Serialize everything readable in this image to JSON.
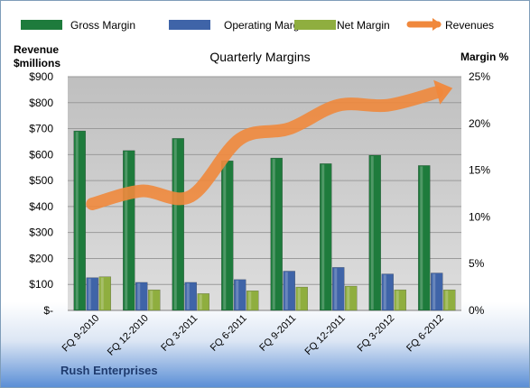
{
  "chart_data": {
    "type": "bar",
    "title": "Quarterly Margins",
    "left_axis_label": [
      "Revenue",
      "$millions"
    ],
    "right_axis_label": "Margin %",
    "footer": "Rush Enterprises",
    "categories": [
      "FQ 9-2010",
      "FQ 12-2010",
      "FQ 3-2011",
      "FQ 6-2011",
      "FQ 9-2011",
      "FQ 12-2011",
      "FQ 3-2012",
      "FQ 6-2012"
    ],
    "left_ticks": [
      "$-",
      "$100",
      "$200",
      "$300",
      "$400",
      "$500",
      "$600",
      "$700",
      "$800",
      "$900"
    ],
    "right_ticks": [
      "0%",
      "5%",
      "10%",
      "15%",
      "20%",
      "25%"
    ],
    "ylim_left": [
      0,
      900
    ],
    "ylim_right": [
      0,
      25
    ],
    "grid": true,
    "legend_position": "top",
    "series": [
      {
        "name": "Gross Margin",
        "type": "bar",
        "axis": "right",
        "color": "#1e7b3c",
        "values": [
          19.2,
          17.1,
          18.4,
          16.0,
          16.3,
          15.7,
          16.6,
          15.5
        ]
      },
      {
        "name": "Operating Margin",
        "type": "bar",
        "axis": "right",
        "color": "#3f64a8",
        "values": [
          3.5,
          3.0,
          3.0,
          3.3,
          4.2,
          4.6,
          3.9,
          4.0
        ]
      },
      {
        "name": "Net Margin",
        "type": "bar",
        "axis": "right",
        "color": "#8fae3f",
        "values": [
          3.6,
          2.2,
          1.8,
          2.1,
          2.5,
          2.6,
          2.2,
          2.2
        ]
      },
      {
        "name": "Revenues",
        "type": "line",
        "axis": "left",
        "color": "#f0883c",
        "values": [
          410,
          460,
          440,
          660,
          700,
          790,
          790,
          840
        ]
      }
    ]
  }
}
